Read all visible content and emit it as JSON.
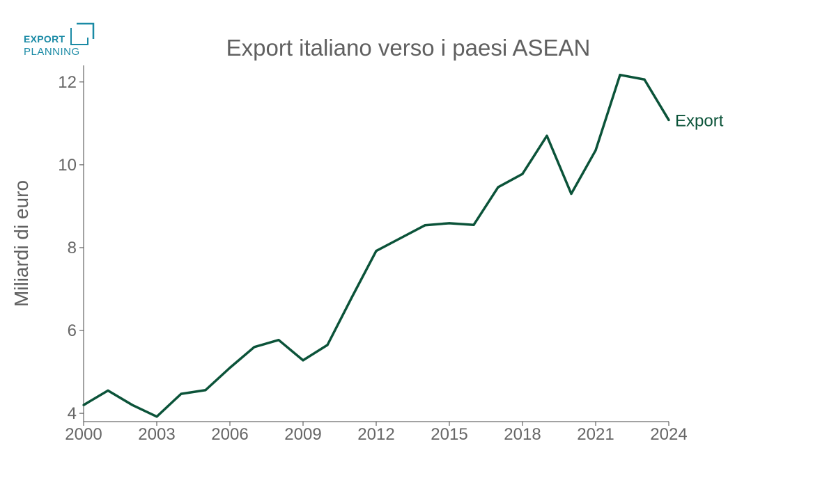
{
  "logo": {
    "line1": "EXPORT",
    "line2": "PLANNING",
    "color": "#1a8aa5"
  },
  "chart_data": {
    "type": "line",
    "title": "Export italiano verso i paesi ASEAN",
    "xlabel": "",
    "ylabel": "Miliardi di euro",
    "x": [
      2000,
      2001,
      2002,
      2003,
      2004,
      2005,
      2006,
      2007,
      2008,
      2009,
      2010,
      2011,
      2012,
      2013,
      2014,
      2015,
      2016,
      2017,
      2018,
      2019,
      2020,
      2021,
      2022,
      2023,
      2024
    ],
    "series": [
      {
        "name": "Export",
        "color": "#0b5339",
        "values": [
          4.2,
          4.55,
          4.2,
          3.92,
          4.47,
          4.56,
          5.1,
          5.6,
          5.77,
          5.28,
          5.65,
          6.8,
          7.92,
          8.23,
          8.54,
          8.59,
          8.55,
          9.46,
          9.78,
          10.7,
          9.3,
          10.35,
          12.17,
          12.06,
          11.08
        ]
      }
    ],
    "xlim": [
      2000,
      2024
    ],
    "ylim": [
      3.8,
      12.4
    ],
    "xticks": [
      "2000",
      "2003",
      "2006",
      "2009",
      "2012",
      "2015",
      "2018",
      "2021",
      "2024"
    ],
    "yticks": [
      "4",
      "6",
      "8",
      "10",
      "12"
    ],
    "grid": false,
    "legend": "end-of-line label"
  }
}
